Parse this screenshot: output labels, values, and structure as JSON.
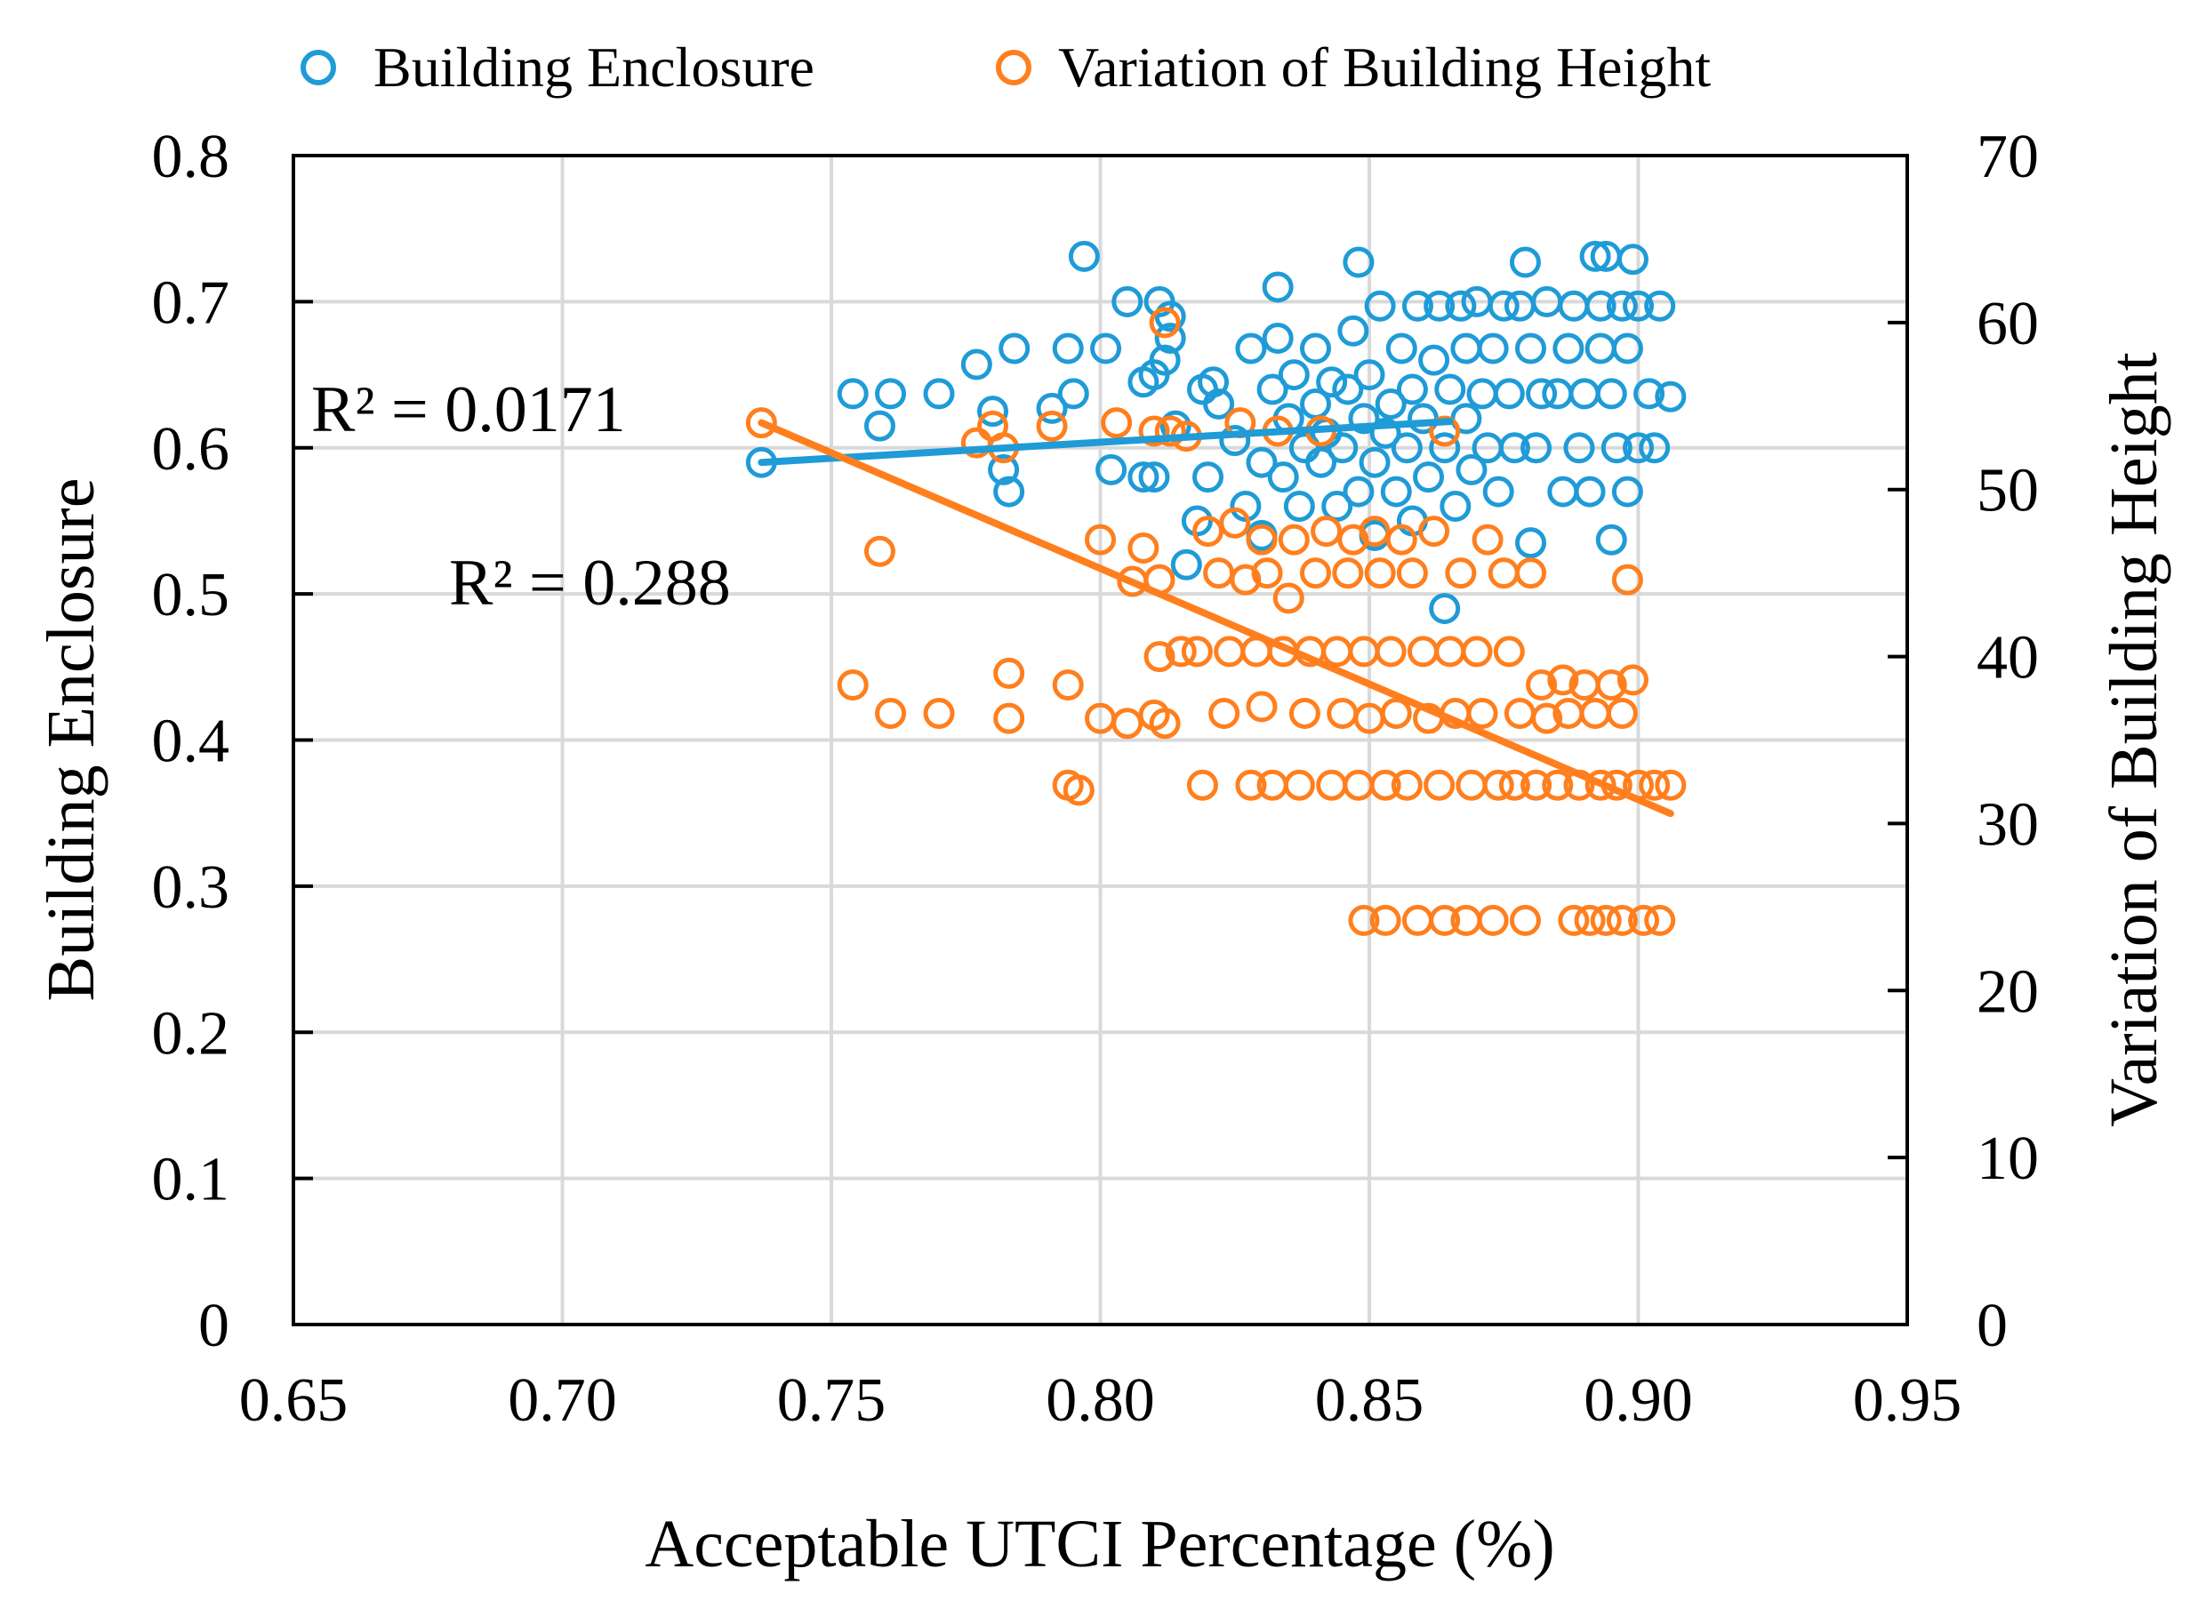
{
  "chart_data": {
    "type": "scatter",
    "title": "",
    "xlabel": "Acceptable UTCI Percentage (%)",
    "ylabel": "Building  Enclosure",
    "y2label": "Variation of Building  Height",
    "xlim": [
      0.65,
      0.95
    ],
    "ylim": [
      0,
      0.8
    ],
    "y2lim": [
      0,
      70
    ],
    "xticks": [
      "0.65",
      "0.70",
      "0.75",
      "0.80",
      "0.85",
      "0.90",
      "0.95"
    ],
    "yticks": [
      "0",
      "0.1",
      "0.2",
      "0.3",
      "0.4",
      "0.5",
      "0.6",
      "0.7",
      "0.8"
    ],
    "y2ticks": [
      "0",
      "10",
      "20",
      "30",
      "40",
      "50",
      "60",
      "70"
    ],
    "grid": true,
    "legend_position": "top",
    "series": [
      {
        "name": "Building  Enclosure",
        "axis": "left",
        "color": "#1f9bd7",
        "marker": "open-circle",
        "trendline": {
          "x": [
            0.737,
            0.865
          ],
          "y": [
            0.59,
            0.618
          ],
          "label": "R² = 0.0171"
        },
        "points": [
          [
            0.737,
            0.59
          ],
          [
            0.754,
            0.637
          ],
          [
            0.759,
            0.615
          ],
          [
            0.761,
            0.637
          ],
          [
            0.77,
            0.637
          ],
          [
            0.777,
            0.657
          ],
          [
            0.78,
            0.625
          ],
          [
            0.782,
            0.585
          ],
          [
            0.783,
            0.57
          ],
          [
            0.784,
            0.668
          ],
          [
            0.791,
            0.627
          ],
          [
            0.794,
            0.668
          ],
          [
            0.795,
            0.637
          ],
          [
            0.797,
            0.731
          ],
          [
            0.801,
            0.668
          ],
          [
            0.802,
            0.585
          ],
          [
            0.805,
            0.7
          ],
          [
            0.808,
            0.645
          ],
          [
            0.808,
            0.58
          ],
          [
            0.81,
            0.65
          ],
          [
            0.81,
            0.58
          ],
          [
            0.811,
            0.7
          ],
          [
            0.812,
            0.66
          ],
          [
            0.813,
            0.69
          ],
          [
            0.813,
            0.675
          ],
          [
            0.814,
            0.615
          ],
          [
            0.816,
            0.52
          ],
          [
            0.818,
            0.55
          ],
          [
            0.819,
            0.64
          ],
          [
            0.82,
            0.58
          ],
          [
            0.821,
            0.645
          ],
          [
            0.822,
            0.63
          ],
          [
            0.825,
            0.605
          ],
          [
            0.827,
            0.56
          ],
          [
            0.828,
            0.668
          ],
          [
            0.83,
            0.54
          ],
          [
            0.83,
            0.59
          ],
          [
            0.832,
            0.64
          ],
          [
            0.833,
            0.71
          ],
          [
            0.833,
            0.675
          ],
          [
            0.834,
            0.58
          ],
          [
            0.835,
            0.62
          ],
          [
            0.836,
            0.65
          ],
          [
            0.837,
            0.56
          ],
          [
            0.838,
            0.6
          ],
          [
            0.84,
            0.668
          ],
          [
            0.84,
            0.63
          ],
          [
            0.841,
            0.59
          ],
          [
            0.842,
            0.61
          ],
          [
            0.843,
            0.645
          ],
          [
            0.844,
            0.56
          ],
          [
            0.845,
            0.6
          ],
          [
            0.846,
            0.64
          ],
          [
            0.847,
            0.68
          ],
          [
            0.848,
            0.727
          ],
          [
            0.848,
            0.57
          ],
          [
            0.849,
            0.62
          ],
          [
            0.85,
            0.65
          ],
          [
            0.851,
            0.59
          ],
          [
            0.851,
            0.54
          ],
          [
            0.852,
            0.697
          ],
          [
            0.853,
            0.61
          ],
          [
            0.854,
            0.63
          ],
          [
            0.855,
            0.57
          ],
          [
            0.856,
            0.668
          ],
          [
            0.857,
            0.6
          ],
          [
            0.858,
            0.64
          ],
          [
            0.858,
            0.55
          ],
          [
            0.859,
            0.697
          ],
          [
            0.86,
            0.62
          ],
          [
            0.861,
            0.58
          ],
          [
            0.862,
            0.66
          ],
          [
            0.863,
            0.697
          ],
          [
            0.864,
            0.49
          ],
          [
            0.864,
            0.6
          ],
          [
            0.865,
            0.64
          ],
          [
            0.866,
            0.56
          ],
          [
            0.867,
            0.697
          ],
          [
            0.868,
            0.62
          ],
          [
            0.868,
            0.668
          ],
          [
            0.869,
            0.585
          ],
          [
            0.87,
            0.7
          ],
          [
            0.871,
            0.637
          ],
          [
            0.872,
            0.6
          ],
          [
            0.873,
            0.668
          ],
          [
            0.874,
            0.57
          ],
          [
            0.875,
            0.697
          ],
          [
            0.876,
            0.637
          ],
          [
            0.877,
            0.6
          ],
          [
            0.878,
            0.697
          ],
          [
            0.879,
            0.727
          ],
          [
            0.88,
            0.535
          ],
          [
            0.88,
            0.668
          ],
          [
            0.881,
            0.6
          ],
          [
            0.882,
            0.637
          ],
          [
            0.883,
            0.7
          ],
          [
            0.885,
            0.637
          ],
          [
            0.886,
            0.57
          ],
          [
            0.887,
            0.668
          ],
          [
            0.888,
            0.697
          ],
          [
            0.889,
            0.6
          ],
          [
            0.89,
            0.637
          ],
          [
            0.891,
            0.57
          ],
          [
            0.892,
            0.731
          ],
          [
            0.893,
            0.668
          ],
          [
            0.893,
            0.697
          ],
          [
            0.894,
            0.731
          ],
          [
            0.895,
            0.637
          ],
          [
            0.895,
            0.537
          ],
          [
            0.896,
            0.6
          ],
          [
            0.897,
            0.697
          ],
          [
            0.898,
            0.57
          ],
          [
            0.898,
            0.668
          ],
          [
            0.899,
            0.729
          ],
          [
            0.9,
            0.6
          ],
          [
            0.9,
            0.697
          ],
          [
            0.902,
            0.637
          ],
          [
            0.903,
            0.6
          ],
          [
            0.904,
            0.697
          ],
          [
            0.906,
            0.635
          ]
        ]
      },
      {
        "name": "Variation  of Building  Height",
        "axis": "right",
        "color": "#ff7f1e",
        "marker": "open-circle",
        "trendline": {
          "x": [
            0.737,
            0.906
          ],
          "y": [
            54.0,
            30.6
          ],
          "label": "R² = 0.288"
        },
        "points": [
          [
            0.737,
            54
          ],
          [
            0.754,
            38.3
          ],
          [
            0.759,
            46.3
          ],
          [
            0.761,
            36.6
          ],
          [
            0.77,
            36.6
          ],
          [
            0.777,
            52.8
          ],
          [
            0.78,
            53.8
          ],
          [
            0.782,
            52.5
          ],
          [
            0.783,
            39
          ],
          [
            0.783,
            36.3
          ],
          [
            0.791,
            53.8
          ],
          [
            0.794,
            32.3
          ],
          [
            0.794,
            38.3
          ],
          [
            0.796,
            32
          ],
          [
            0.8,
            36.3
          ],
          [
            0.8,
            47
          ],
          [
            0.803,
            54
          ],
          [
            0.805,
            36
          ],
          [
            0.806,
            44.5
          ],
          [
            0.808,
            46.5
          ],
          [
            0.81,
            36.5
          ],
          [
            0.81,
            53.5
          ],
          [
            0.811,
            44.6
          ],
          [
            0.811,
            40
          ],
          [
            0.812,
            36
          ],
          [
            0.812,
            60
          ],
          [
            0.813,
            53.5
          ],
          [
            0.815,
            40.3
          ],
          [
            0.816,
            53.2
          ],
          [
            0.818,
            40.3
          ],
          [
            0.819,
            32.3
          ],
          [
            0.82,
            47.5
          ],
          [
            0.822,
            45
          ],
          [
            0.823,
            36.6
          ],
          [
            0.824,
            40.3
          ],
          [
            0.825,
            48
          ],
          [
            0.826,
            54
          ],
          [
            0.827,
            44.6
          ],
          [
            0.828,
            32.3
          ],
          [
            0.829,
            40.3
          ],
          [
            0.83,
            47
          ],
          [
            0.83,
            37
          ],
          [
            0.831,
            45
          ],
          [
            0.832,
            32.3
          ],
          [
            0.833,
            53.5
          ],
          [
            0.834,
            40.3
          ],
          [
            0.835,
            43.5
          ],
          [
            0.836,
            47
          ],
          [
            0.837,
            32.3
          ],
          [
            0.838,
            36.6
          ],
          [
            0.839,
            40.3
          ],
          [
            0.84,
            45
          ],
          [
            0.841,
            53.5
          ],
          [
            0.842,
            47.5
          ],
          [
            0.843,
            32.3
          ],
          [
            0.844,
            40.3
          ],
          [
            0.845,
            36.6
          ],
          [
            0.846,
            45
          ],
          [
            0.847,
            47
          ],
          [
            0.848,
            32.3
          ],
          [
            0.849,
            24.2
          ],
          [
            0.849,
            40.3
          ],
          [
            0.85,
            36.3
          ],
          [
            0.851,
            47.5
          ],
          [
            0.852,
            45
          ],
          [
            0.853,
            32.3
          ],
          [
            0.853,
            24.2
          ],
          [
            0.854,
            40.3
          ],
          [
            0.855,
            36.6
          ],
          [
            0.856,
            47
          ],
          [
            0.857,
            32.3
          ],
          [
            0.858,
            45
          ],
          [
            0.859,
            24.2
          ],
          [
            0.86,
            40.3
          ],
          [
            0.861,
            36.3
          ],
          [
            0.862,
            47.5
          ],
          [
            0.863,
            32.3
          ],
          [
            0.864,
            24.2
          ],
          [
            0.864,
            53.5
          ],
          [
            0.865,
            40.3
          ],
          [
            0.866,
            36.6
          ],
          [
            0.867,
            45
          ],
          [
            0.868,
            24.2
          ],
          [
            0.869,
            32.3
          ],
          [
            0.87,
            40.3
          ],
          [
            0.871,
            36.6
          ],
          [
            0.872,
            47
          ],
          [
            0.873,
            24.2
          ],
          [
            0.874,
            32.3
          ],
          [
            0.875,
            45
          ],
          [
            0.876,
            40.3
          ],
          [
            0.877,
            32.3
          ],
          [
            0.878,
            36.6
          ],
          [
            0.879,
            24.2
          ],
          [
            0.88,
            45
          ],
          [
            0.881,
            32.3
          ],
          [
            0.882,
            38.3
          ],
          [
            0.883,
            36.3
          ],
          [
            0.885,
            32.3
          ],
          [
            0.886,
            38.6
          ],
          [
            0.887,
            36.6
          ],
          [
            0.888,
            24.2
          ],
          [
            0.889,
            32.3
          ],
          [
            0.89,
            38.3
          ],
          [
            0.891,
            24.2
          ],
          [
            0.892,
            36.6
          ],
          [
            0.893,
            32.3
          ],
          [
            0.894,
            24.2
          ],
          [
            0.895,
            38.3
          ],
          [
            0.896,
            32.3
          ],
          [
            0.897,
            36.6
          ],
          [
            0.897,
            24.2
          ],
          [
            0.898,
            44.6
          ],
          [
            0.899,
            38.6
          ],
          [
            0.9,
            32.3
          ],
          [
            0.901,
            24.2
          ],
          [
            0.903,
            32.3
          ],
          [
            0.904,
            24.2
          ],
          [
            0.906,
            32.3
          ]
        ]
      }
    ]
  }
}
